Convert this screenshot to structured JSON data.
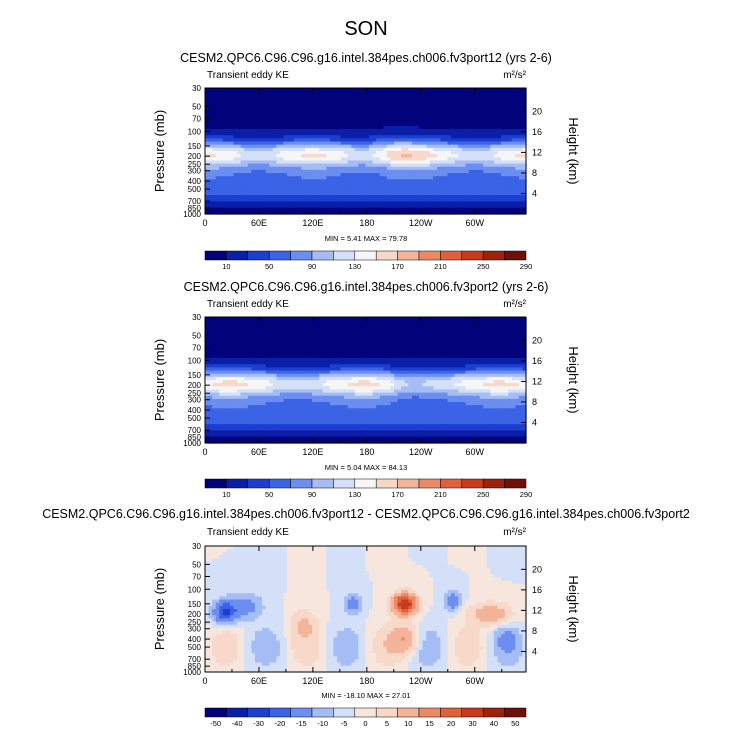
{
  "figure_title": "SON",
  "chart_data": [
    {
      "type": "heatmap",
      "title": "CESM2.QPC6.C96.C96.g16.intel.384pes.ch006.fv3port12 (yrs 2-6)",
      "subtitle_left": "Transient eddy KE",
      "units": "m²/s²",
      "ylabel": "Pressure (mb)",
      "ylabel_right": "Height (km)",
      "x_ticks": [
        "0",
        "60E",
        "120E",
        "180",
        "120W",
        "60W"
      ],
      "x_tick_values": [
        0,
        60,
        120,
        180,
        240,
        300
      ],
      "xlim": [
        0,
        357
      ],
      "p_ticks": [
        "30",
        "50",
        "70",
        "100",
        "150",
        "200",
        "250",
        "300",
        "400",
        "500",
        "700",
        "850",
        "1000"
      ],
      "p_tick_values": [
        30,
        50,
        70,
        100,
        150,
        200,
        250,
        300,
        400,
        500,
        700,
        850,
        1000
      ],
      "ylim_mb": [
        30,
        1000
      ],
      "height_ticks": [
        "4",
        "8",
        "12",
        "16",
        "20"
      ],
      "height_tick_values_km": [
        4,
        8,
        12,
        16,
        20
      ],
      "stats": "MIN =  5.41  MAX = 79.78",
      "colorbar_labels": [
        "10",
        "50",
        "90",
        "130",
        "170",
        "210",
        "250",
        "290"
      ],
      "field": "absolute"
    },
    {
      "type": "heatmap",
      "title": "CESM2.QPC6.C96.C96.g16.intel.384pes.ch006.fv3port2 (yrs 2-6)",
      "subtitle_left": "Transient eddy KE",
      "units": "m²/s²",
      "ylabel": "Pressure (mb)",
      "ylabel_right": "Height (km)",
      "x_ticks": [
        "0",
        "60E",
        "120E",
        "180",
        "120W",
        "60W"
      ],
      "x_tick_values": [
        0,
        60,
        120,
        180,
        240,
        300
      ],
      "xlim": [
        0,
        357
      ],
      "p_ticks": [
        "30",
        "50",
        "70",
        "100",
        "150",
        "200",
        "250",
        "300",
        "400",
        "500",
        "700",
        "850",
        "1000"
      ],
      "p_tick_values": [
        30,
        50,
        70,
        100,
        150,
        200,
        250,
        300,
        400,
        500,
        700,
        850,
        1000
      ],
      "ylim_mb": [
        30,
        1000
      ],
      "height_ticks": [
        "4",
        "8",
        "12",
        "16",
        "20"
      ],
      "height_tick_values_km": [
        4,
        8,
        12,
        16,
        20
      ],
      "stats": "MIN =  5.04  MAX = 84.13",
      "colorbar_labels": [
        "10",
        "50",
        "90",
        "130",
        "170",
        "210",
        "250",
        "290"
      ],
      "field": "absolute"
    },
    {
      "type": "heatmap",
      "title": "CESM2.QPC6.C96.C96.g16.intel.384pes.ch006.fv3port12 - CESM2.QPC6.C96.C96.g16.intel.384pes.ch006.fv3port2",
      "subtitle_left": "Transient eddy KE",
      "units": "m²/s²",
      "ylabel": "Pressure (mb)",
      "ylabel_right": "Height (km)",
      "x_ticks": [
        "0",
        "60E",
        "120E",
        "180",
        "120W",
        "60W"
      ],
      "x_tick_values": [
        0,
        60,
        120,
        180,
        240,
        300
      ],
      "xlim": [
        0,
        357
      ],
      "p_ticks": [
        "30",
        "50",
        "70",
        "100",
        "150",
        "200",
        "250",
        "300",
        "400",
        "500",
        "700",
        "850",
        "1000"
      ],
      "p_tick_values": [
        30,
        50,
        70,
        100,
        150,
        200,
        250,
        300,
        400,
        500,
        700,
        850,
        1000
      ],
      "ylim_mb": [
        30,
        1000
      ],
      "height_ticks": [
        "4",
        "8",
        "12",
        "16",
        "20"
      ],
      "height_tick_values_km": [
        4,
        8,
        12,
        16,
        20
      ],
      "stats": "MIN = -18.10  MAX = 27.01",
      "colorbar_labels": [
        "-50",
        "-40",
        "-30",
        "-20",
        "-15",
        "-10",
        "-5",
        "0",
        "5",
        "10",
        "15",
        "20",
        "30",
        "40",
        "50"
      ],
      "field": "difference"
    }
  ],
  "colors": {
    "absolute_scale": [
      "#02037a",
      "#0a1ea8",
      "#1d3fd0",
      "#3a63e6",
      "#6b8ef0",
      "#a5bdf4",
      "#d4e0f8",
      "#f6f6f6",
      "#f8d8c8",
      "#f4b49a",
      "#ec8a66",
      "#e0603c",
      "#c83a1c",
      "#a0200e",
      "#701008"
    ],
    "difference_scale": [
      "#02037a",
      "#0a1ea8",
      "#1d3fd0",
      "#3a63e6",
      "#6b8ef0",
      "#a5bdf4",
      "#d4e0f8",
      "#f6e6de",
      "#f8d8c8",
      "#f4b49a",
      "#ec8a66",
      "#e0603c",
      "#c83a1c",
      "#a0200e",
      "#701008"
    ]
  }
}
